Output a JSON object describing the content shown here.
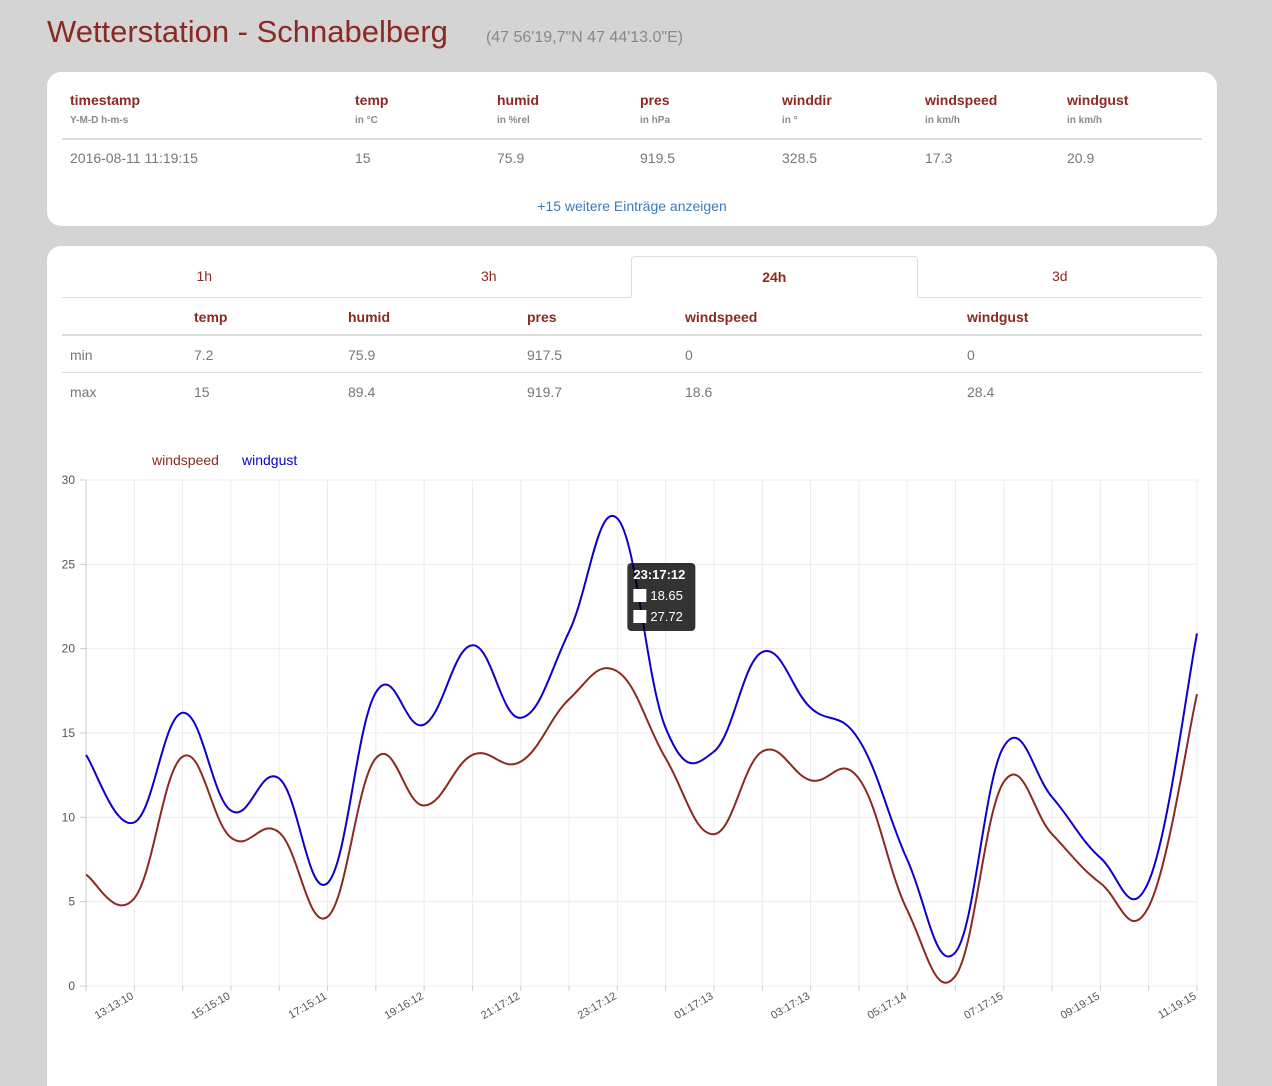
{
  "page": {
    "title": "Wetterstation - Schnabelberg",
    "coords": "(47 56'19,7\"N 47 44'13.0\"E)"
  },
  "latest": {
    "columns": [
      {
        "name": "timestamp",
        "unit": "Y-M-D h-m-s"
      },
      {
        "name": "temp",
        "unit": "in °C"
      },
      {
        "name": "humid",
        "unit": "in %rel"
      },
      {
        "name": "pres",
        "unit": "in hPa"
      },
      {
        "name": "winddir",
        "unit": "in °"
      },
      {
        "name": "windspeed",
        "unit": "in km/h"
      },
      {
        "name": "windgust",
        "unit": "in km/h"
      }
    ],
    "row": [
      "2016-08-11 11:19:15",
      "15",
      "75.9",
      "919.5",
      "328.5",
      "17.3",
      "20.9"
    ],
    "more_link": "+15 weitere Einträge anzeigen"
  },
  "tabs": [
    {
      "label": "1h",
      "active": false
    },
    {
      "label": "3h",
      "active": false
    },
    {
      "label": "24h",
      "active": true
    },
    {
      "label": "3d",
      "active": false
    }
  ],
  "stats": {
    "headers": [
      "temp",
      "humid",
      "pres",
      "windspeed",
      "windgust"
    ],
    "rows": [
      {
        "label": "min",
        "values": [
          "7.2",
          "75.9",
          "917.5",
          "0",
          "0"
        ]
      },
      {
        "label": "max",
        "values": [
          "15",
          "89.4",
          "919.7",
          "18.6",
          "28.4"
        ]
      }
    ]
  },
  "chart_data": {
    "type": "line",
    "ylim": [
      0,
      30
    ],
    "yticks": [
      0,
      5,
      10,
      15,
      20,
      25,
      30
    ],
    "grid": true,
    "legend_position": "top-left",
    "x_labels": [
      "13:13:10",
      "15:15:10",
      "17:15:11",
      "19:16:12",
      "21:17:12",
      "23:17:12",
      "01:17:13",
      "03:17:13",
      "05:17:14",
      "07:17:15",
      "09:19:15",
      "11:19:15"
    ],
    "series": [
      {
        "name": "windspeed",
        "color": "#8b2a22",
        "values": [
          6.6,
          5.2,
          13.6,
          8.8,
          9.1,
          4.1,
          13.5,
          10.7,
          13.7,
          13.3,
          17.0,
          18.65,
          13.5,
          9.0,
          13.9,
          12.2,
          12.3,
          4.5,
          0.6,
          12.1,
          9.0,
          6.1,
          4.7,
          17.3
        ]
      },
      {
        "name": "windgust",
        "color": "#0d00cc",
        "values": [
          13.7,
          9.7,
          16.2,
          10.4,
          12.3,
          6.1,
          17.4,
          15.5,
          20.2,
          15.9,
          21.0,
          27.72,
          15.3,
          13.9,
          19.8,
          16.5,
          14.6,
          7.5,
          2.0,
          14.2,
          11.2,
          7.6,
          6.2,
          20.9
        ]
      }
    ],
    "tooltip": {
      "title": "23:17:12",
      "values": [
        "18.65",
        "27.72"
      ]
    }
  }
}
